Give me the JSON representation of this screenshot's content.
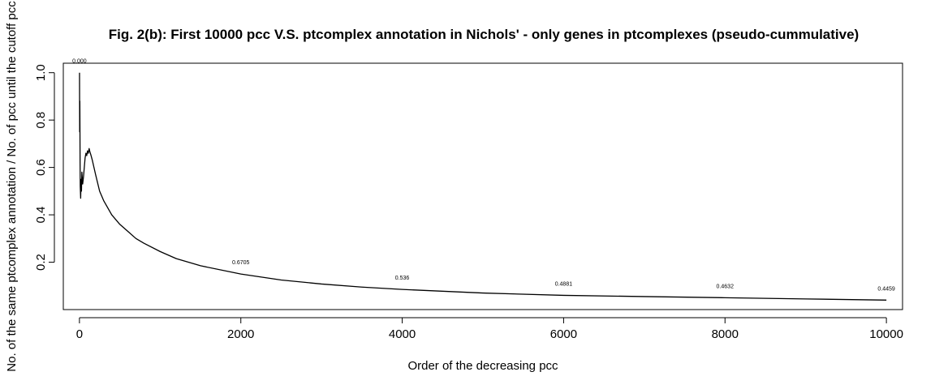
{
  "chart_data": {
    "type": "line",
    "title": "Fig. 2(b): First 10000 pcc V.S. ptcomplex annotation in Nichols' - only genes in ptcomplexes (pseudo-cummulative)",
    "xlabel": "Order of the decreasing pcc",
    "ylabel": "No. of the same ptcomplex annotation / No. of pcc until the cutoff pcc",
    "xlim": [
      -200,
      10200
    ],
    "ylim": [
      0.0,
      1.04
    ],
    "x_ticks": [
      0,
      2000,
      4000,
      6000,
      8000,
      10000
    ],
    "x_tick_labels": [
      "0",
      "2000",
      "4000",
      "6000",
      "8000",
      "10000"
    ],
    "y_ticks": [
      0.2,
      0.4,
      0.6,
      0.8,
      1.0
    ],
    "y_tick_labels": [
      "0.2",
      "0.4",
      "0.6",
      "0.8",
      "1.0"
    ],
    "grid": false,
    "series": [
      {
        "color": "#000000",
        "x": [
          1,
          3,
          5,
          8,
          10,
          15,
          20,
          25,
          30,
          40,
          50,
          60,
          70,
          80,
          90,
          100,
          110,
          120,
          130,
          140,
          160,
          180,
          200,
          250,
          300,
          400,
          500,
          600,
          700,
          800,
          1000,
          1200,
          1500,
          2000,
          2500,
          3000,
          3500,
          4000,
          5000,
          6000,
          7000,
          8000,
          9000,
          10000
        ],
        "y": [
          1.0,
          0.75,
          0.88,
          0.62,
          0.52,
          0.47,
          0.55,
          0.5,
          0.58,
          0.53,
          0.56,
          0.6,
          0.64,
          0.66,
          0.65,
          0.67,
          0.66,
          0.68,
          0.665,
          0.655,
          0.63,
          0.6,
          0.57,
          0.5,
          0.46,
          0.4,
          0.36,
          0.33,
          0.3,
          0.28,
          0.245,
          0.215,
          0.185,
          0.15,
          0.125,
          0.108,
          0.095,
          0.085,
          0.07,
          0.06,
          0.055,
          0.05,
          0.045,
          0.04
        ]
      }
    ],
    "data_labels": [
      {
        "x": 0,
        "y": 1.0,
        "text": "0.000"
      },
      {
        "x": 2000,
        "y": 0.15,
        "text": "0.6705"
      },
      {
        "x": 4000,
        "y": 0.085,
        "text": "0.536"
      },
      {
        "x": 6000,
        "y": 0.06,
        "text": "0.4881"
      },
      {
        "x": 8000,
        "y": 0.05,
        "text": "0.4632"
      },
      {
        "x": 10000,
        "y": 0.04,
        "text": "0.4459"
      }
    ]
  }
}
